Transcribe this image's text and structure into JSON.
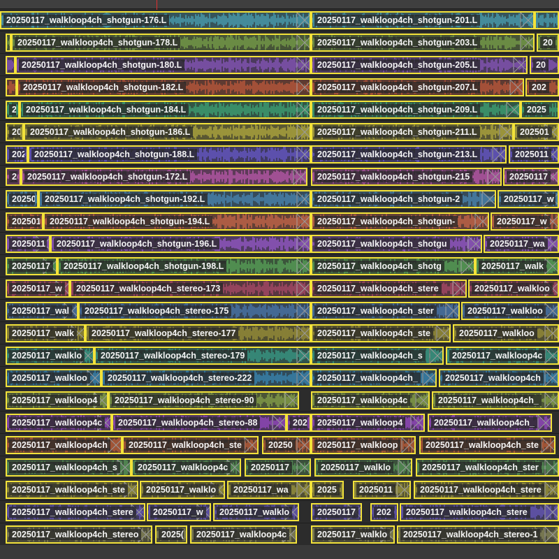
{
  "timeline": {
    "colors": {
      "background": "#3a3a3a",
      "track": "#2c2c2c",
      "clip_border": "#f2e23a",
      "label_bg": "#282828",
      "label_text": "#f4f4f4",
      "playhead": "#e03030",
      "crossfade": "#9a9a9a"
    },
    "tracks": [
      {
        "clips": [
          {
            "start": 0,
            "end": 445,
            "label": "20250117_walkloop4ch_shotgun-176.L",
            "color": "#4aa6b9"
          },
          {
            "start": 445,
            "end": 765,
            "label": "20250117_walkloop4ch_shotgun-201.L",
            "color": "#4aa6b9"
          },
          {
            "start": 765,
            "end": 800,
            "label": "",
            "color": "#4aa6b9"
          }
        ]
      },
      {
        "clips": [
          {
            "start": 8,
            "end": 16,
            "label": "",
            "color": "#7ca64a"
          },
          {
            "start": 16,
            "end": 445,
            "label": "20250117_walkloop4ch_shotgun-178.L",
            "color": "#7ca64a"
          },
          {
            "start": 445,
            "end": 765,
            "label": "20250117_walkloop4ch_shotgun-203.L",
            "color": "#7ca64a"
          },
          {
            "start": 768,
            "end": 800,
            "label": "20",
            "color": "#7ca64a"
          }
        ]
      },
      {
        "clips": [
          {
            "start": 8,
            "end": 22,
            "label": "",
            "color": "#8a58c0"
          },
          {
            "start": 22,
            "end": 445,
            "label": "20250117_walkloop4ch_shotgun-180.L",
            "color": "#8a58c0"
          },
          {
            "start": 445,
            "end": 755,
            "label": "20250117_walkloop4ch_shotgun-205.L",
            "color": "#8a58c0"
          },
          {
            "start": 758,
            "end": 800,
            "label": "20",
            "color": "#8a58c0"
          }
        ]
      },
      {
        "clips": [
          {
            "start": 8,
            "end": 24,
            "label": "",
            "color": "#c45a3c"
          },
          {
            "start": 24,
            "end": 445,
            "label": "20250117_walkloop4ch_shotgun-182.L",
            "color": "#c45a3c"
          },
          {
            "start": 445,
            "end": 750,
            "label": "20250117_walkloop4ch_shotgun-207.L",
            "color": "#c45a3c"
          },
          {
            "start": 752,
            "end": 800,
            "label": "202",
            "color": "#c45a3c"
          }
        ]
      },
      {
        "clips": [
          {
            "start": 8,
            "end": 28,
            "label": "2(",
            "color": "#3fa878"
          },
          {
            "start": 28,
            "end": 445,
            "label": "20250117_walkloop4ch_shotgun-184.L",
            "color": "#3fa878"
          },
          {
            "start": 445,
            "end": 745,
            "label": "20250117_walkloop4ch_shotgun-209.L",
            "color": "#3fa878"
          },
          {
            "start": 745,
            "end": 800,
            "label": "2025",
            "color": "#3fa878"
          }
        ]
      },
      {
        "clips": [
          {
            "start": 8,
            "end": 34,
            "label": "20",
            "color": "#b8b040"
          },
          {
            "start": 34,
            "end": 445,
            "label": "20250117_walkloop4ch_shotgun-186.L",
            "color": "#b8b040"
          },
          {
            "start": 445,
            "end": 735,
            "label": "20250117_walkloop4ch_shotgun-211.L",
            "color": "#b8b040"
          },
          {
            "start": 735,
            "end": 800,
            "label": "202501",
            "color": "#b8b040"
          }
        ]
      },
      {
        "clips": [
          {
            "start": 8,
            "end": 40,
            "label": "202",
            "color": "#6a5ad0"
          },
          {
            "start": 40,
            "end": 445,
            "label": "20250117_walkloop4ch_shotgun-188.L",
            "color": "#6a5ad0"
          },
          {
            "start": 445,
            "end": 725,
            "label": "20250117_walkloop4ch_shotgun-213.L",
            "color": "#6a5ad0"
          },
          {
            "start": 728,
            "end": 800,
            "label": "2025011",
            "color": "#6a5ad0"
          }
        ]
      },
      {
        "clips": [
          {
            "start": 8,
            "end": 30,
            "label": "2(",
            "color": "#c05ab0"
          },
          {
            "start": 30,
            "end": 440,
            "label": "20250117_walkloop4ch_shotgun-172.L",
            "color": "#c05ab0"
          },
          {
            "start": 445,
            "end": 718,
            "label": "20250117_walkloop4ch_shotgun-215",
            "color": "#c05ab0"
          },
          {
            "start": 720,
            "end": 800,
            "label": "20250117",
            "color": "#c05ab0"
          }
        ]
      },
      {
        "clips": [
          {
            "start": 8,
            "end": 55,
            "label": "20250",
            "color": "#4a8ab8"
          },
          {
            "start": 55,
            "end": 445,
            "label": "20250117_walkloop4ch_shotgun-192.L",
            "color": "#4a8ab8"
          },
          {
            "start": 445,
            "end": 710,
            "label": "20250117_walkloop4ch_shotgun-2",
            "color": "#4a8ab8"
          },
          {
            "start": 712,
            "end": 800,
            "label": "20250117_w",
            "color": "#4a8ab8"
          }
        ]
      },
      {
        "clips": [
          {
            "start": 8,
            "end": 62,
            "label": "2025011",
            "color": "#d06a4a"
          },
          {
            "start": 62,
            "end": 445,
            "label": "20250117_walkloop4ch_shotgun-194.L",
            "color": "#d06a4a"
          },
          {
            "start": 445,
            "end": 700,
            "label": "20250117_walkloop4ch_shotgun-",
            "color": "#d06a4a"
          },
          {
            "start": 702,
            "end": 800,
            "label": "20250117_w",
            "color": "#d06a4a"
          }
        ]
      },
      {
        "clips": [
          {
            "start": 8,
            "end": 72,
            "label": "2025011",
            "color": "#9a5ad0"
          },
          {
            "start": 72,
            "end": 445,
            "label": "20250117_walkloop4ch_shotgun-196.L",
            "color": "#9a5ad0"
          },
          {
            "start": 445,
            "end": 690,
            "label": "20250117_walkloop4ch_shotgu",
            "color": "#9a5ad0"
          },
          {
            "start": 692,
            "end": 800,
            "label": "20250117_wa",
            "color": "#9a5ad0"
          }
        ]
      },
      {
        "clips": [
          {
            "start": 8,
            "end": 82,
            "label": "20250117",
            "color": "#5aa85a"
          },
          {
            "start": 82,
            "end": 445,
            "label": "20250117_walkloop4ch_shotgun-198.L",
            "color": "#5aa85a"
          },
          {
            "start": 445,
            "end": 680,
            "label": "20250117_walkloop4ch_shotg",
            "color": "#5aa85a"
          },
          {
            "start": 680,
            "end": 800,
            "label": "20250117_walk",
            "color": "#5aa85a"
          }
        ]
      },
      {
        "clips": [
          {
            "start": 8,
            "end": 100,
            "label": "20250117_w",
            "color": "#b04a6a"
          },
          {
            "start": 100,
            "end": 445,
            "label": "20250117_walkloop4ch_stereo-173",
            "color": "#b04a6a"
          },
          {
            "start": 445,
            "end": 668,
            "label": "20250117_walkloop4ch_stere",
            "color": "#b04a6a"
          },
          {
            "start": 670,
            "end": 800,
            "label": "20250117_walkloo",
            "color": "#b04a6a"
          }
        ]
      },
      {
        "clips": [
          {
            "start": 8,
            "end": 112,
            "label": "20250117_wal",
            "color": "#4a7ab0"
          },
          {
            "start": 112,
            "end": 445,
            "label": "20250117_walkloop4ch_stereo-175",
            "color": "#4a7ab0"
          },
          {
            "start": 445,
            "end": 658,
            "label": "20250117_walkloop4ch_ster",
            "color": "#4a7ab0"
          },
          {
            "start": 660,
            "end": 800,
            "label": "20250117_walkloo",
            "color": "#4a7ab0"
          }
        ]
      },
      {
        "clips": [
          {
            "start": 8,
            "end": 122,
            "label": "20250117_walk",
            "color": "#a0963a"
          },
          {
            "start": 122,
            "end": 445,
            "label": "20250117_walkloop4ch_stereo-177",
            "color": "#a0963a"
          },
          {
            "start": 445,
            "end": 645,
            "label": "20250117_walkloop4ch_ste",
            "color": "#a0963a"
          },
          {
            "start": 648,
            "end": 800,
            "label": "20250117_walkloo",
            "color": "#a0963a"
          }
        ]
      },
      {
        "clips": [
          {
            "start": 8,
            "end": 135,
            "label": "20250117_walklo",
            "color": "#3aa08a"
          },
          {
            "start": 135,
            "end": 445,
            "label": "20250117_walkloop4ch_stereo-179",
            "color": "#3aa08a"
          },
          {
            "start": 445,
            "end": 635,
            "label": "20250117_walkloop4ch_s",
            "color": "#3aa08a"
          },
          {
            "start": 638,
            "end": 800,
            "label": "20250117_walkloop4c",
            "color": "#3aa08a"
          }
        ]
      },
      {
        "clips": [
          {
            "start": 8,
            "end": 145,
            "label": "20250117_walkloo",
            "color": "#3a8ab8"
          },
          {
            "start": 145,
            "end": 445,
            "label": "20250117_walkloop4ch_stereo-222",
            "color": "#3a8ab8"
          },
          {
            "start": 445,
            "end": 625,
            "label": "20250117_walkloop4ch_",
            "color": "#3a8ab8"
          },
          {
            "start": 628,
            "end": 800,
            "label": "20250117_walkloop4ch",
            "color": "#3a8ab8"
          }
        ]
      },
      {
        "clips": [
          {
            "start": 8,
            "end": 155,
            "label": "20250117_walkloop4",
            "color": "#8aa84a"
          },
          {
            "start": 155,
            "end": 428,
            "label": "20250117_walkloop4ch_stereo-90",
            "color": "#8aa84a"
          },
          {
            "start": 445,
            "end": 615,
            "label": "20250117_walkloop4c",
            "color": "#8aa84a"
          },
          {
            "start": 618,
            "end": 800,
            "label": "20250117_walkloop4ch_",
            "color": "#8aa84a"
          }
        ]
      },
      {
        "clips": [
          {
            "start": 8,
            "end": 160,
            "label": "20250117_walkloop4c",
            "color": "#9a4ac8"
          },
          {
            "start": 160,
            "end": 410,
            "label": "20250117_walkloop4ch_stereo-88",
            "color": "#9a4ac8"
          },
          {
            "start": 410,
            "end": 445,
            "label": "202",
            "color": "#9a4ac8"
          },
          {
            "start": 445,
            "end": 608,
            "label": "20250117_walkloop4",
            "color": "#9a4ac8"
          },
          {
            "start": 612,
            "end": 790,
            "label": "20250117_walkloop4ch_",
            "color": "#9a4ac8"
          }
        ]
      },
      {
        "clips": [
          {
            "start": 8,
            "end": 175,
            "label": "20250117_walkloop4ch",
            "color": "#c0603a"
          },
          {
            "start": 175,
            "end": 370,
            "label": "20250117_walkloop4ch_ste",
            "color": "#c0603a"
          },
          {
            "start": 375,
            "end": 445,
            "label": "20250",
            "color": "#c0603a"
          },
          {
            "start": 445,
            "end": 595,
            "label": "20250117_walkloop",
            "color": "#c0603a"
          },
          {
            "start": 600,
            "end": 795,
            "label": "20250117_walkloop4ch_ste",
            "color": "#c0603a"
          }
        ]
      },
      {
        "clips": [
          {
            "start": 8,
            "end": 188,
            "label": "20250117_walkloop4ch_s",
            "color": "#5a9a5a"
          },
          {
            "start": 188,
            "end": 345,
            "label": "20250117_walkloop4c",
            "color": "#5a9a5a"
          },
          {
            "start": 350,
            "end": 445,
            "label": "20250117",
            "color": "#5a9a5a"
          },
          {
            "start": 450,
            "end": 590,
            "label": "20250117_walklo",
            "color": "#5a9a5a"
          },
          {
            "start": 595,
            "end": 800,
            "label": "20250117_walkloop4ch_ster",
            "color": "#5a9a5a"
          }
        ]
      },
      {
        "clips": [
          {
            "start": 8,
            "end": 198,
            "label": "20250117_walkloop4ch_ste",
            "color": "#a09a40"
          },
          {
            "start": 200,
            "end": 322,
            "label": "20250117_walklo",
            "color": "#a09a40"
          },
          {
            "start": 325,
            "end": 445,
            "label": "20250117_wa",
            "color": "#a09a40"
          },
          {
            "start": 445,
            "end": 492,
            "label": "2025",
            "color": "#a09a40"
          },
          {
            "start": 505,
            "end": 588,
            "label": "2025011",
            "color": "#a09a40"
          },
          {
            "start": 592,
            "end": 800,
            "label": "20250117_walkloop4ch_stere",
            "color": "#a09a40"
          }
        ]
      },
      {
        "clips": [
          {
            "start": 8,
            "end": 208,
            "label": "20250117_walkloop4ch_stere",
            "color": "#6a5ac0"
          },
          {
            "start": 210,
            "end": 302,
            "label": "20250117_w",
            "color": "#6a5ac0"
          },
          {
            "start": 305,
            "end": 428,
            "label": "20250117_walklo",
            "color": "#6a5ac0"
          },
          {
            "start": 445,
            "end": 518,
            "label": "20250117",
            "color": "#6a5ac0"
          },
          {
            "start": 530,
            "end": 570,
            "label": "202",
            "color": "#6a5ac0"
          },
          {
            "start": 572,
            "end": 800,
            "label": "20250117_walkloop4ch_stere",
            "color": "#6a5ac0"
          }
        ]
      },
      {
        "clips": [
          {
            "start": 8,
            "end": 218,
            "label": "20250117_walkloop4ch_stereo",
            "color": "#8a8a5a"
          },
          {
            "start": 222,
            "end": 268,
            "label": "2025(",
            "color": "#8a8a5a"
          },
          {
            "start": 272,
            "end": 425,
            "label": "20250117_walkloop4c",
            "color": "#8a8a5a"
          },
          {
            "start": 445,
            "end": 565,
            "label": "20250117_walklo",
            "color": "#8a8a5a"
          },
          {
            "start": 568,
            "end": 800,
            "label": "20250117_walkloop4ch_stereo-1",
            "color": "#8a8a5a"
          }
        ]
      }
    ]
  }
}
